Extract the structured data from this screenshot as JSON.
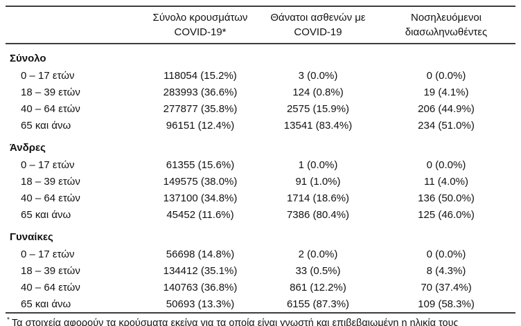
{
  "header": {
    "cases": {
      "line1": "Σύνολο κρουσμάτων",
      "line2": "COVID-19*"
    },
    "deaths": {
      "line1": "Θάνατοι ασθενών με",
      "line2": "COVID-19"
    },
    "intubated": {
      "line1": "Νοσηλευόμενοι",
      "line2": "διασωληνωθέντες"
    }
  },
  "sections": [
    {
      "title": "Σύνολο",
      "rows": [
        {
          "label": "0 – 17 ετών",
          "cases": "118054 (15.2%)",
          "deaths": "3 (0.0%)",
          "intubated": "0 (0.0%)"
        },
        {
          "label": "18 – 39 ετών",
          "cases": "283993 (36.6%)",
          "deaths": "124 (0.8%)",
          "intubated": "19 (4.1%)"
        },
        {
          "label": "40 – 64 ετών",
          "cases": "277877 (35.8%)",
          "deaths": "2575 (15.9%)",
          "intubated": "206 (44.9%)"
        },
        {
          "label": "65 και άνω",
          "cases": "96151 (12.4%)",
          "deaths": "13541 (83.4%)",
          "intubated": "234 (51.0%)"
        }
      ]
    },
    {
      "title": "Άνδρες",
      "rows": [
        {
          "label": "0 – 17 ετών",
          "cases": "61355 (15.6%)",
          "deaths": "1 (0.0%)",
          "intubated": "0 (0.0%)"
        },
        {
          "label": "18 – 39 ετών",
          "cases": "149575 (38.0%)",
          "deaths": "91 (1.0%)",
          "intubated": "11 (4.0%)"
        },
        {
          "label": "40 – 64 ετών",
          "cases": "137100 (34.8%)",
          "deaths": "1714 (18.6%)",
          "intubated": "136 (50.0%)"
        },
        {
          "label": "65 και άνω",
          "cases": "45452 (11.6%)",
          "deaths": "7386 (80.4%)",
          "intubated": "125 (46.0%)"
        }
      ]
    },
    {
      "title": "Γυναίκες",
      "rows": [
        {
          "label": "0 – 17 ετών",
          "cases": "56698 (14.8%)",
          "deaths": "2 (0.0%)",
          "intubated": "0 (0.0%)"
        },
        {
          "label": "18 – 39 ετών",
          "cases": "134412 (35.1%)",
          "deaths": "33 (0.5%)",
          "intubated": "8 (4.3%)"
        },
        {
          "label": "40 – 64 ετών",
          "cases": "140763 (36.8%)",
          "deaths": "861 (12.2%)",
          "intubated": "70 (37.4%)"
        },
        {
          "label": "65 και άνω",
          "cases": "50693 (13.3%)",
          "deaths": "6155 (87.3%)",
          "intubated": "109 (58.3%)"
        }
      ]
    }
  ],
  "footnote": {
    "marker": "*",
    "text": "Τα στοιχεία αφορούν τα κρούσματα εκείνα για τα οποία είναι γνωστή και επιβεβαιωμένη η ηλικία τους"
  }
}
